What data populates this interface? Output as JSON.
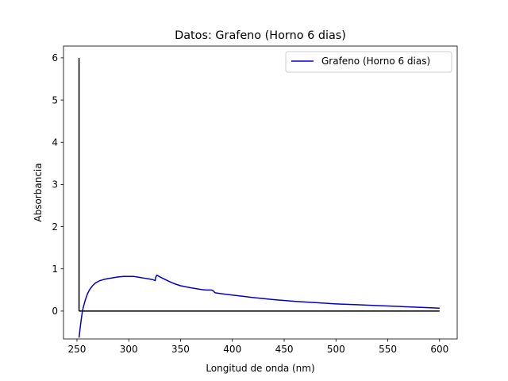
{
  "chart_data": {
    "type": "line",
    "title": "Datos: Grafeno (Horno 6 dias)",
    "xlabel": "Longitud de onda (nm)",
    "ylabel": "Absorbancia",
    "xlim": [
      237,
      617
    ],
    "ylim": [
      -0.66,
      6.28
    ],
    "x_ticks": [
      250,
      300,
      350,
      400,
      450,
      500,
      550,
      600
    ],
    "y_ticks": [
      0,
      1,
      2,
      3,
      4,
      5,
      6
    ],
    "grid": false,
    "legend_position": "top-right",
    "series": [
      {
        "name": "Grafeno (Horno 6 dias)",
        "color": "#0000cc",
        "x": [
          252,
          253,
          254,
          255,
          256,
          258,
          260,
          262,
          265,
          268,
          272,
          276,
          280,
          285,
          290,
          295,
          300,
          305,
          310,
          315,
          320,
          324,
          325.5,
          326,
          327,
          328,
          330,
          335,
          340,
          345,
          350,
          360,
          370,
          375,
          380,
          382,
          383,
          384,
          390,
          400,
          410,
          420,
          440,
          460,
          480,
          500,
          520,
          540,
          560,
          580,
          600
        ],
        "y": [
          -0.63,
          -0.42,
          -0.22,
          -0.05,
          0.08,
          0.26,
          0.4,
          0.5,
          0.6,
          0.67,
          0.72,
          0.75,
          0.77,
          0.79,
          0.81,
          0.82,
          0.82,
          0.82,
          0.8,
          0.78,
          0.76,
          0.74,
          0.72,
          0.8,
          0.85,
          0.84,
          0.81,
          0.75,
          0.69,
          0.64,
          0.6,
          0.55,
          0.51,
          0.5,
          0.5,
          0.47,
          0.44,
          0.43,
          0.41,
          0.38,
          0.35,
          0.32,
          0.27,
          0.23,
          0.2,
          0.17,
          0.15,
          0.13,
          0.11,
          0.09,
          0.07
        ]
      }
    ],
    "reference_lines": [
      {
        "orientation": "vertical",
        "x": 252,
        "y_from": 0,
        "y_to": 6,
        "color": "#000000"
      },
      {
        "orientation": "horizontal",
        "y": 0,
        "x_from": 252,
        "x_to": 600,
        "color": "#000000"
      }
    ]
  }
}
